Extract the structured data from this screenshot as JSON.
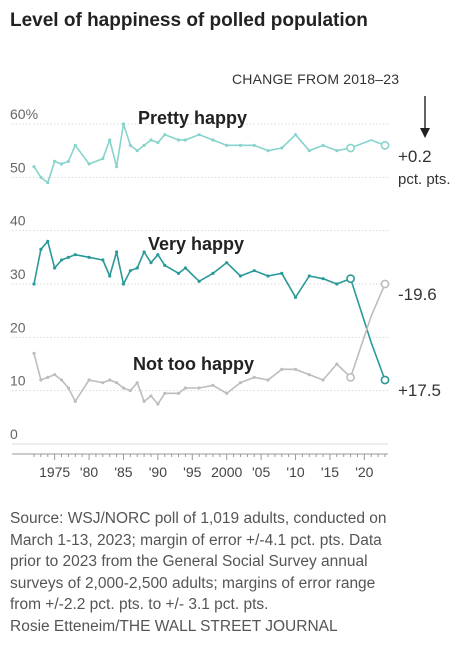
{
  "title": "Level of happiness of polled population",
  "chart_data": {
    "type": "line",
    "title": "Level of happiness of polled population",
    "annotation_header": "CHANGE FROM 2018–23",
    "ylim": [
      0,
      65
    ],
    "xlim": [
      1971.5,
      2024
    ],
    "y_ticks": [
      {
        "v": 0,
        "label": "0"
      },
      {
        "v": 10,
        "label": "10"
      },
      {
        "v": 20,
        "label": "20"
      },
      {
        "v": 30,
        "label": "30"
      },
      {
        "v": 40,
        "label": "40"
      },
      {
        "v": 50,
        "label": "50"
      },
      {
        "v": 60,
        "label": "60%"
      }
    ],
    "x_ticks": [
      {
        "v": 1975,
        "label": "1975"
      },
      {
        "v": 1980,
        "label": "'80"
      },
      {
        "v": 1985,
        "label": "'85"
      },
      {
        "v": 1990,
        "label": "'90"
      },
      {
        "v": 1995,
        "label": "'95"
      },
      {
        "v": 2000,
        "label": "2000"
      },
      {
        "v": 2005,
        "label": "'05"
      },
      {
        "v": 2010,
        "label": "'10"
      },
      {
        "v": 2015,
        "label": "'15"
      },
      {
        "v": 2020,
        "label": "'20"
      }
    ],
    "series": [
      {
        "name": "Pretty happy",
        "color": "#86d4cc",
        "change": "+0.2",
        "change_unit": "pct. pts.",
        "x": [
          1972,
          1973,
          1974,
          1975,
          1976,
          1977,
          1978,
          1980,
          1982,
          1983,
          1984,
          1985,
          1986,
          1987,
          1988,
          1989,
          1990,
          1991,
          1993,
          1994,
          1996,
          1998,
          2000,
          2002,
          2004,
          2006,
          2008,
          2010,
          2012,
          2014,
          2016,
          2018,
          2021,
          2023
        ],
        "y": [
          52,
          50,
          49,
          53,
          52.5,
          53,
          56,
          52.5,
          53.5,
          57,
          52,
          60,
          56,
          55,
          56,
          57,
          56.5,
          58,
          57,
          57,
          58,
          57,
          56,
          56,
          56,
          55,
          55.5,
          58,
          55,
          56,
          55,
          55.5,
          57,
          56
        ],
        "poll_point_x": 2023,
        "hollow_point_x": 2018
      },
      {
        "name": "Very happy",
        "color": "#2a9a98",
        "change": "-19.6",
        "x": [
          1972,
          1973,
          1974,
          1975,
          1976,
          1977,
          1978,
          1980,
          1982,
          1983,
          1984,
          1985,
          1986,
          1987,
          1988,
          1989,
          1990,
          1991,
          1993,
          1994,
          1996,
          1998,
          2000,
          2002,
          2004,
          2006,
          2008,
          2010,
          2012,
          2014,
          2016,
          2018,
          2021,
          2023
        ],
        "y": [
          30,
          36.5,
          38,
          33,
          34.5,
          35,
          35.5,
          35,
          34.5,
          31.5,
          36,
          30,
          32.5,
          33,
          36,
          34,
          35.5,
          33.5,
          32,
          33,
          30.5,
          32,
          34,
          31.5,
          32.5,
          31.5,
          32,
          27.5,
          31.5,
          31,
          30,
          31,
          19,
          12
        ],
        "poll_point_x": 2023,
        "hollow_point_x": 2018
      },
      {
        "name": "Not too happy",
        "color": "#bdbdbd",
        "change": "+17.5",
        "x": [
          1972,
          1973,
          1974,
          1975,
          1976,
          1977,
          1978,
          1980,
          1982,
          1983,
          1984,
          1985,
          1986,
          1987,
          1988,
          1989,
          1990,
          1991,
          1993,
          1994,
          1996,
          1998,
          2000,
          2002,
          2004,
          2006,
          2008,
          2010,
          2012,
          2014,
          2016,
          2018,
          2021,
          2023
        ],
        "y": [
          17,
          12,
          12.5,
          13,
          12,
          10.5,
          8,
          12,
          11.5,
          12,
          11.5,
          10.5,
          10,
          11.5,
          8,
          9,
          7.5,
          9.5,
          9.5,
          10.5,
          10.5,
          11,
          9.5,
          11.5,
          12.5,
          12,
          14,
          14,
          13,
          12,
          15,
          12.5,
          24,
          30
        ],
        "poll_point_x": 2023,
        "hollow_point_x": 2018
      }
    ],
    "footer": [
      "Source: WSJ/NORC poll of 1,019 adults, conducted on",
      "March 1-13, 2023; margin of error +/-4.1 pct. pts. Data",
      "prior to 2023 from the General Social Survey annual",
      "surveys of 2,000-2,500 adults; margins of error range",
      "from +/-2.2  pct. pts. to  +/- 3.1 pct. pts.",
      "Rosie Etteneim/THE WALL STREET JOURNAL"
    ]
  }
}
